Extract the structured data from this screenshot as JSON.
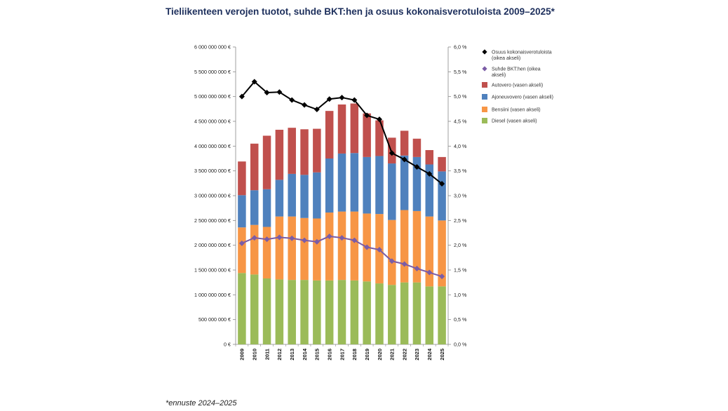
{
  "title": "Tieliikenteen verojen tuotot, suhde BKT:hen ja osuus kokonaisverotuloista 2009–2025*",
  "footnote": "*ennuste 2024–2025",
  "chart_data": {
    "type": "bar",
    "stacked": true,
    "categories": [
      "2009",
      "2010",
      "2011",
      "2012",
      "2013",
      "2014",
      "2015",
      "2016",
      "2017",
      "2018",
      "2019",
      "2020",
      "2021",
      "2022",
      "2023",
      "2024",
      "2025"
    ],
    "left_axis": {
      "ylim": [
        0,
        6000000000
      ],
      "ticks": [
        0,
        500000000,
        1000000000,
        1500000000,
        2000000000,
        2500000000,
        3000000000,
        3500000000,
        4000000000,
        4500000000,
        5000000000,
        5500000000,
        6000000000
      ],
      "tick_labels": [
        "0 €",
        "500 000 000 €",
        "1 000 000 000 €",
        "1 500 000 000 €",
        "2 000 000 000 €",
        "2 500 000 000 €",
        "3 000 000 000 €",
        "3 500 000 000 €",
        "4 000 000 000 €",
        "4 500 000 000 €",
        "5 000 000 000 €",
        "5 500 000 000 €",
        "6 000 000 000 €"
      ]
    },
    "right_axis": {
      "ylim": [
        0,
        6.0
      ],
      "ticks": [
        0,
        0.5,
        1.0,
        1.5,
        2.0,
        2.5,
        3.0,
        3.5,
        4.0,
        4.5,
        5.0,
        5.5,
        6.0
      ],
      "tick_labels": [
        "0,0 %",
        "0,5 %",
        "1,0 %",
        "1,5 %",
        "2,0 %",
        "2,5 %",
        "3,0 %",
        "3,5 %",
        "4,0 %",
        "4,5 %",
        "5,0 %",
        "5,5 %",
        "6,0 %"
      ]
    },
    "grid": false,
    "legend_position": "right",
    "bar_series": [
      {
        "name": "Diesel (vasen akseli)",
        "color": "#9bbb59",
        "values": [
          1440000000,
          1410000000,
          1330000000,
          1310000000,
          1300000000,
          1300000000,
          1290000000,
          1290000000,
          1300000000,
          1290000000,
          1270000000,
          1230000000,
          1200000000,
          1250000000,
          1250000000,
          1170000000,
          1170000000
        ]
      },
      {
        "name": "Bensiini (vasen akseli)",
        "color": "#f79646",
        "values": [
          920000000,
          1000000000,
          1040000000,
          1270000000,
          1280000000,
          1250000000,
          1250000000,
          1370000000,
          1380000000,
          1390000000,
          1370000000,
          1400000000,
          1310000000,
          1460000000,
          1440000000,
          1410000000,
          1330000000
        ]
      },
      {
        "name": "Ajoneuvovero (vasen akseli)",
        "color": "#4f81bd",
        "values": [
          650000000,
          700000000,
          760000000,
          740000000,
          860000000,
          870000000,
          930000000,
          1090000000,
          1170000000,
          1180000000,
          1140000000,
          1170000000,
          1140000000,
          1100000000,
          1090000000,
          1050000000,
          990000000
        ]
      },
      {
        "name": "Autovero (vasen akseli)",
        "color": "#c0504d",
        "values": [
          680000000,
          940000000,
          1080000000,
          1010000000,
          930000000,
          920000000,
          880000000,
          960000000,
          990000000,
          1000000000,
          880000000,
          720000000,
          520000000,
          500000000,
          370000000,
          290000000,
          290000000
        ]
      }
    ],
    "line_series": [
      {
        "name": "Osuus kokonaisverotuloista (oikea akseli)",
        "color": "#000000",
        "marker": "diamond",
        "values": [
          5.0,
          5.3,
          5.08,
          5.09,
          4.93,
          4.83,
          4.74,
          4.95,
          4.98,
          4.93,
          4.62,
          4.54,
          3.86,
          3.73,
          3.58,
          3.44,
          3.24
        ]
      },
      {
        "name": "Suhde BKT:hen (oikea akseli)",
        "color": "#7b5ca6",
        "marker": "diamond",
        "values": [
          2.04,
          2.15,
          2.12,
          2.16,
          2.14,
          2.1,
          2.07,
          2.18,
          2.15,
          2.1,
          1.96,
          1.91,
          1.68,
          1.62,
          1.53,
          1.45,
          1.37
        ]
      }
    ],
    "legend": [
      {
        "name": "Osuus kokonaisverotuloista",
        "name2": "(oikea akseli)",
        "kind": "line",
        "color": "#000000"
      },
      {
        "name": "Suhde BKT:hen (oikea",
        "name2": "akseli)",
        "kind": "line",
        "color": "#7b5ca6"
      },
      {
        "name": "Autovero (vasen akseli)",
        "kind": "box",
        "color": "#c0504d"
      },
      {
        "name": "Ajoneuvovero (vasen akseli)",
        "kind": "box",
        "color": "#4f81bd"
      },
      {
        "name": "Bensiini (vasen akseli)",
        "kind": "box",
        "color": "#f79646"
      },
      {
        "name": "Diesel (vasen akseli)",
        "kind": "box",
        "color": "#9bbb59"
      }
    ]
  }
}
